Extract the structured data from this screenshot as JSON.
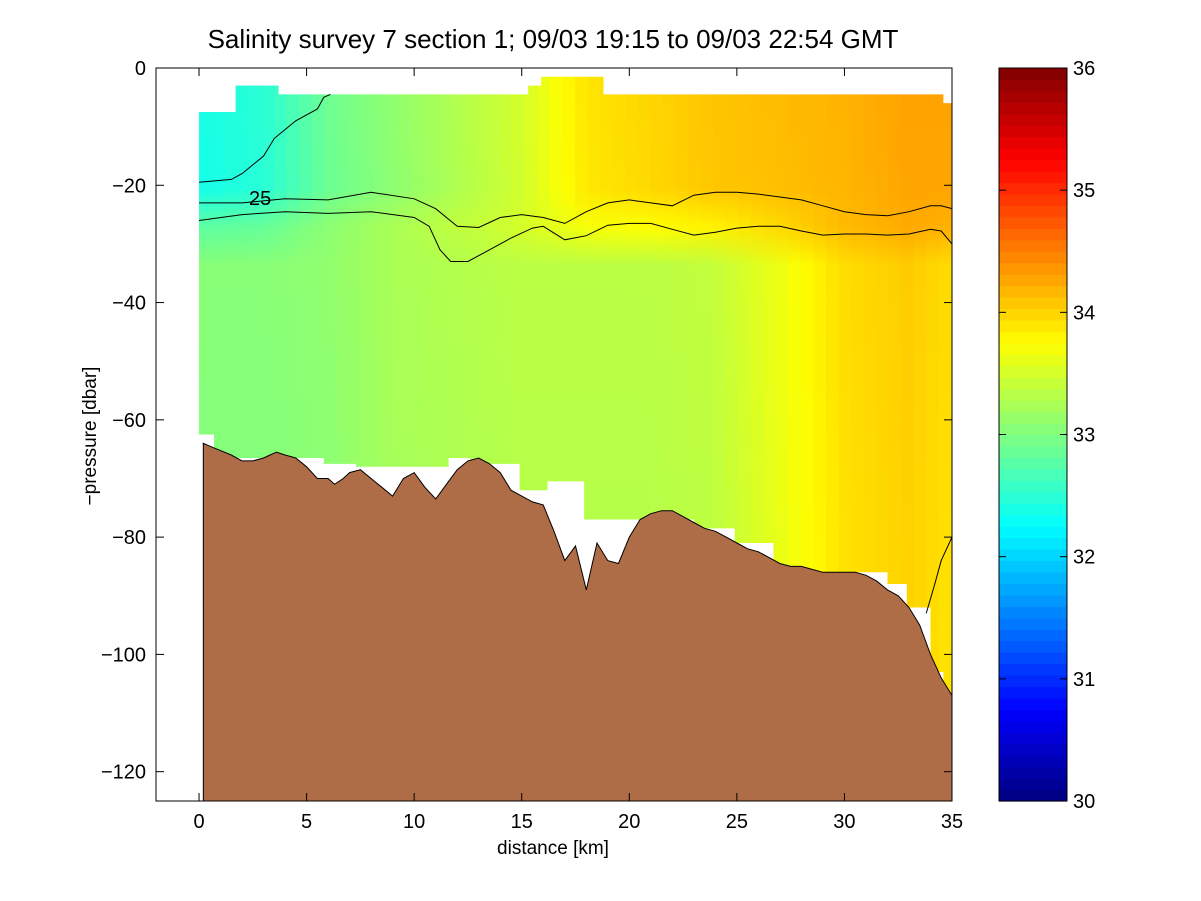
{
  "chart_data": {
    "type": "heatmap",
    "title": "Salinity survey 7 section 1; 09/03 19:15 to 09/03 22:54 GMT",
    "xlabel": "distance [km]",
    "ylabel": "−pressure [dbar]",
    "xlim": [
      -2,
      35
    ],
    "ylim": [
      -125,
      0
    ],
    "xticks": [
      0,
      5,
      10,
      15,
      20,
      25,
      30,
      35
    ],
    "yticks": [
      0,
      -20,
      -40,
      -60,
      -80,
      -100,
      -120
    ],
    "xtick_labels": [
      "0",
      "5",
      "10",
      "15",
      "20",
      "25",
      "30",
      "35"
    ],
    "ytick_labels": [
      "0",
      "−20",
      "−40",
      "−60",
      "−80",
      "−100",
      "−120"
    ],
    "colorbar": {
      "colormap": "jet",
      "range": [
        30,
        36
      ],
      "ticks": [
        30,
        31,
        32,
        33,
        34,
        35,
        36
      ],
      "tick_labels": [
        "30",
        "31",
        "32",
        "33",
        "34",
        "35",
        "36"
      ]
    },
    "surface_salinity": [
      [
        0.2,
        32.4
      ],
      [
        3,
        32.5
      ],
      [
        6,
        32.9
      ],
      [
        9,
        33.1
      ],
      [
        12,
        33.3
      ],
      [
        15,
        33.5
      ],
      [
        18,
        33.9
      ],
      [
        21,
        34.0
      ],
      [
        24,
        34.1
      ],
      [
        27,
        34.15
      ],
      [
        30,
        34.2
      ],
      [
        33,
        34.3
      ],
      [
        35,
        34.3
      ]
    ],
    "deep_salinity": [
      [
        0.2,
        33.0
      ],
      [
        3,
        33.0
      ],
      [
        6,
        33.05
      ],
      [
        9,
        33.2
      ],
      [
        12,
        33.25
      ],
      [
        15,
        33.3
      ],
      [
        18,
        33.3
      ],
      [
        21,
        33.3
      ],
      [
        24,
        33.35
      ],
      [
        27,
        33.6
      ],
      [
        30,
        33.9
      ],
      [
        33,
        34.0
      ],
      [
        35,
        33.9
      ]
    ],
    "contour_label": "25",
    "contours": [
      {
        "level": "upper",
        "points": [
          [
            0,
            -19.5
          ],
          [
            1.5,
            -19
          ],
          [
            2,
            -18
          ],
          [
            3,
            -15
          ],
          [
            3.5,
            -12
          ],
          [
            4.5,
            -9
          ],
          [
            5.5,
            -7
          ],
          [
            5.8,
            -5
          ],
          [
            6.1,
            -4.5
          ]
        ]
      },
      {
        "level": "25",
        "points": [
          [
            0,
            -23
          ],
          [
            2,
            -23
          ],
          [
            4,
            -22.3
          ],
          [
            6,
            -22.5
          ],
          [
            8,
            -21.2
          ],
          [
            10,
            -22.3
          ],
          [
            11,
            -24
          ],
          [
            12,
            -27
          ],
          [
            13,
            -27.2
          ],
          [
            14,
            -25.5
          ],
          [
            15,
            -25
          ],
          [
            16,
            -25.5
          ],
          [
            17,
            -26.5
          ],
          [
            18,
            -24.5
          ],
          [
            19,
            -23
          ],
          [
            20,
            -22.5
          ],
          [
            21,
            -23
          ],
          [
            22,
            -23.5
          ],
          [
            23,
            -21.7
          ],
          [
            24,
            -21.2
          ],
          [
            25,
            -21.2
          ],
          [
            26,
            -21.5
          ],
          [
            27,
            -22
          ],
          [
            28,
            -22.5
          ],
          [
            29,
            -23.5
          ],
          [
            30,
            -24.5
          ],
          [
            31,
            -25
          ],
          [
            32,
            -25.2
          ],
          [
            33,
            -24.5
          ],
          [
            34,
            -23.5
          ],
          [
            34.5,
            -23.5
          ],
          [
            35,
            -24
          ]
        ]
      },
      {
        "level": "lower",
        "points": [
          [
            0,
            -26
          ],
          [
            2,
            -25
          ],
          [
            4,
            -24.5
          ],
          [
            6,
            -24.8
          ],
          [
            8,
            -24.5
          ],
          [
            10,
            -25.5
          ],
          [
            10.7,
            -27
          ],
          [
            11.2,
            -31
          ],
          [
            11.7,
            -33
          ],
          [
            12.5,
            -33
          ],
          [
            13.5,
            -31
          ],
          [
            14.5,
            -29
          ],
          [
            15.5,
            -27.3
          ],
          [
            16,
            -27
          ],
          [
            17,
            -29.3
          ],
          [
            18,
            -28.6
          ],
          [
            19,
            -26.8
          ],
          [
            20,
            -26.5
          ],
          [
            21,
            -26.5
          ],
          [
            22,
            -27.5
          ],
          [
            23,
            -28.5
          ],
          [
            24,
            -28
          ],
          [
            25,
            -27.3
          ],
          [
            26,
            -27
          ],
          [
            27,
            -27
          ],
          [
            28,
            -27.8
          ],
          [
            29,
            -28.5
          ],
          [
            30,
            -28.3
          ],
          [
            31,
            -28.3
          ],
          [
            32,
            -28.5
          ],
          [
            33,
            -28.3
          ],
          [
            34,
            -27.5
          ],
          [
            34.5,
            -27.8
          ],
          [
            35,
            -30
          ]
        ]
      },
      {
        "level": "deep",
        "points": [
          [
            33.8,
            -93
          ],
          [
            34.2,
            -88
          ],
          [
            34.5,
            -84
          ],
          [
            35,
            -80
          ]
        ]
      }
    ],
    "bottom_profile": [
      [
        0.2,
        -64
      ],
      [
        0.5,
        -64.5
      ],
      [
        1.5,
        -66
      ],
      [
        2,
        -67
      ],
      [
        2.5,
        -67
      ],
      [
        3,
        -66.5
      ],
      [
        3.3,
        -66
      ],
      [
        3.6,
        -65.5
      ],
      [
        4,
        -66
      ],
      [
        4.5,
        -66.5
      ],
      [
        5,
        -68
      ],
      [
        5.5,
        -70
      ],
      [
        6,
        -70
      ],
      [
        6.3,
        -71
      ],
      [
        6.7,
        -70
      ],
      [
        7,
        -69
      ],
      [
        7.5,
        -68.5
      ],
      [
        8,
        -70
      ],
      [
        8.5,
        -71.5
      ],
      [
        9,
        -73
      ],
      [
        9.5,
        -70
      ],
      [
        10,
        -69
      ],
      [
        10.5,
        -71.5
      ],
      [
        11,
        -73.5
      ],
      [
        11.5,
        -71
      ],
      [
        12,
        -68.5
      ],
      [
        12.5,
        -67
      ],
      [
        13,
        -66.5
      ],
      [
        13.5,
        -67.5
      ],
      [
        14,
        -69
      ],
      [
        14.5,
        -72
      ],
      [
        15,
        -73
      ],
      [
        15.5,
        -74
      ],
      [
        16,
        -74.5
      ],
      [
        16.5,
        -79
      ],
      [
        17,
        -84
      ],
      [
        17.5,
        -81.5
      ],
      [
        18,
        -89
      ],
      [
        18.5,
        -81
      ],
      [
        19,
        -84
      ],
      [
        19.5,
        -84.5
      ],
      [
        20,
        -80
      ],
      [
        20.5,
        -77
      ],
      [
        21,
        -76
      ],
      [
        21.5,
        -75.5
      ],
      [
        22,
        -75.5
      ],
      [
        22.5,
        -76.5
      ],
      [
        23,
        -77.5
      ],
      [
        23.5,
        -78.5
      ],
      [
        24,
        -79
      ],
      [
        24.5,
        -80
      ],
      [
        25,
        -81
      ],
      [
        25.5,
        -82
      ],
      [
        26,
        -82.5
      ],
      [
        26.5,
        -83.5
      ],
      [
        27,
        -84.5
      ],
      [
        27.5,
        -85
      ],
      [
        28,
        -85
      ],
      [
        28.5,
        -85.5
      ],
      [
        29,
        -86
      ],
      [
        29.5,
        -86
      ],
      [
        30,
        -86
      ],
      [
        30.5,
        -86
      ],
      [
        31,
        -86.5
      ],
      [
        31.5,
        -87.5
      ],
      [
        32,
        -89
      ],
      [
        32.5,
        -90
      ],
      [
        33,
        -92
      ],
      [
        33.5,
        -95
      ],
      [
        34,
        -100
      ],
      [
        34.5,
        -104
      ],
      [
        35,
        -107
      ]
    ],
    "data_coverage": [
      [
        0,
        -7.5
      ],
      [
        1.7,
        -7.5
      ],
      [
        1.7,
        -3
      ],
      [
        3.7,
        -3
      ],
      [
        3.7,
        -4.5
      ],
      [
        15.3,
        -4.5
      ],
      [
        15.3,
        -3
      ],
      [
        15.9,
        -3
      ],
      [
        15.9,
        -1.5
      ],
      [
        18.8,
        -1.5
      ],
      [
        18.8,
        -4.5
      ],
      [
        34.6,
        -4.5
      ],
      [
        34.6,
        -6
      ],
      [
        35,
        -6
      ],
      [
        35,
        -107
      ],
      [
        34.6,
        -107
      ],
      [
        34.6,
        -103
      ],
      [
        34.0,
        -103
      ],
      [
        34.0,
        -92
      ],
      [
        32.9,
        -92
      ],
      [
        32.9,
        -88
      ],
      [
        32.0,
        -88
      ],
      [
        32.0,
        -86
      ],
      [
        26.7,
        -86
      ],
      [
        26.7,
        -81
      ],
      [
        24.9,
        -81
      ],
      [
        24.9,
        -78.5
      ],
      [
        23.0,
        -78.5
      ],
      [
        23.0,
        -77
      ],
      [
        17.9,
        -77
      ],
      [
        17.9,
        -70.5
      ],
      [
        16.2,
        -70.5
      ],
      [
        16.2,
        -72
      ],
      [
        14.9,
        -72
      ],
      [
        14.9,
        -67.5
      ],
      [
        12.6,
        -67.5
      ],
      [
        12.6,
        -66.5
      ],
      [
        11.6,
        -66.5
      ],
      [
        11.6,
        -68
      ],
      [
        7.3,
        -68
      ],
      [
        7.3,
        -67.5
      ],
      [
        5.8,
        -67.5
      ],
      [
        5.8,
        -66.5
      ],
      [
        0.7,
        -66.5
      ],
      [
        0.7,
        -62.5
      ],
      [
        0,
        -62.5
      ]
    ]
  }
}
